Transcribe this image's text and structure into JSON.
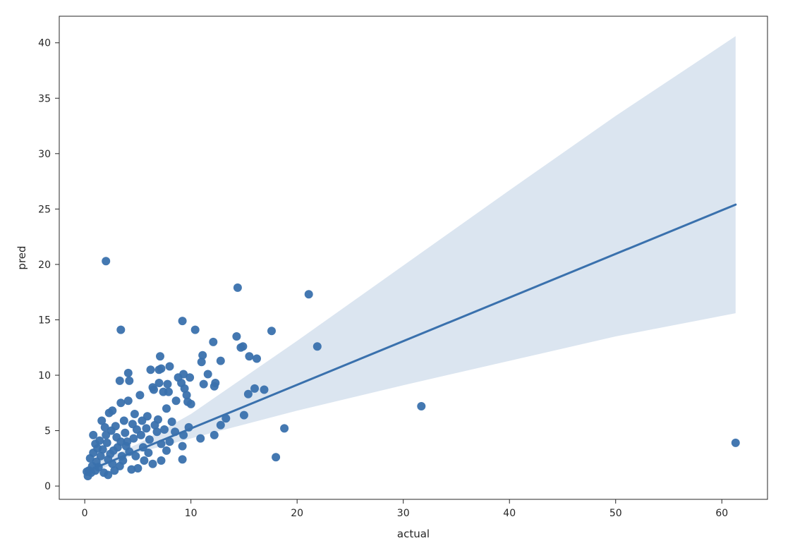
{
  "chart_data": {
    "type": "scatter",
    "title": "",
    "xlabel": "actual",
    "ylabel": "pred",
    "xlim": [
      -2.4,
      64.3
    ],
    "ylim": [
      -1.2,
      42.4
    ],
    "xticks": [
      0,
      10,
      20,
      30,
      40,
      50,
      60
    ],
    "yticks": [
      0,
      5,
      10,
      15,
      20,
      25,
      30,
      35,
      40
    ],
    "grid": false,
    "legend": "none",
    "colors": {
      "points": "#3a71ad",
      "line": "#3a71ad",
      "band": "#dbe5f0"
    },
    "regression_line": {
      "x": [
        0.1,
        61.3
      ],
      "y": [
        1.3,
        25.4
      ]
    },
    "confidence_band": {
      "x": [
        0.1,
        5,
        10,
        20,
        30,
        40,
        50,
        61.3
      ],
      "lower": [
        0.9,
        3.0,
        4.3,
        6.8,
        9.1,
        11.3,
        13.5,
        15.6
      ],
      "upper": [
        1.7,
        3.8,
        6.5,
        13.1,
        19.9,
        26.7,
        33.4,
        40.6
      ]
    },
    "points": [
      [
        2.0,
        20.3
      ],
      [
        3.4,
        14.1
      ],
      [
        14.4,
        17.9
      ],
      [
        21.1,
        17.3
      ],
      [
        9.2,
        14.9
      ],
      [
        10.4,
        14.1
      ],
      [
        17.6,
        14.0
      ],
      [
        14.3,
        13.5
      ],
      [
        12.1,
        13.0
      ],
      [
        14.9,
        12.6
      ],
      [
        21.9,
        12.6
      ],
      [
        14.7,
        12.5
      ],
      [
        11.1,
        11.8
      ],
      [
        15.5,
        11.7
      ],
      [
        16.2,
        11.5
      ],
      [
        7.1,
        11.7
      ],
      [
        11.0,
        11.2
      ],
      [
        12.8,
        11.3
      ],
      [
        6.2,
        10.5
      ],
      [
        7.0,
        10.5
      ],
      [
        7.2,
        10.6
      ],
      [
        8.0,
        10.8
      ],
      [
        4.1,
        10.2
      ],
      [
        9.3,
        10.1
      ],
      [
        11.6,
        10.1
      ],
      [
        9.9,
        9.8
      ],
      [
        8.8,
        9.8
      ],
      [
        12.3,
        9.3
      ],
      [
        11.2,
        9.2
      ],
      [
        3.3,
        9.5
      ],
      [
        4.2,
        9.5
      ],
      [
        7.0,
        9.3
      ],
      [
        7.8,
        9.2
      ],
      [
        9.1,
        9.3
      ],
      [
        6.4,
        8.9
      ],
      [
        9.4,
        8.8
      ],
      [
        12.2,
        9.0
      ],
      [
        6.5,
        8.7
      ],
      [
        16.0,
        8.8
      ],
      [
        16.9,
        8.7
      ],
      [
        15.4,
        8.3
      ],
      [
        7.4,
        8.5
      ],
      [
        7.9,
        8.5
      ],
      [
        9.6,
        8.2
      ],
      [
        5.2,
        8.2
      ],
      [
        4.1,
        7.7
      ],
      [
        9.7,
        7.6
      ],
      [
        8.6,
        7.7
      ],
      [
        3.4,
        7.5
      ],
      [
        31.7,
        7.2
      ],
      [
        2.6,
        6.8
      ],
      [
        10.0,
        7.4
      ],
      [
        7.7,
        7.0
      ],
      [
        13.3,
        6.1
      ],
      [
        15.0,
        6.4
      ],
      [
        12.8,
        5.5
      ],
      [
        18.8,
        5.2
      ],
      [
        9.8,
        5.3
      ],
      [
        8.2,
        5.8
      ],
      [
        9.3,
        4.6
      ],
      [
        10.9,
        4.3
      ],
      [
        12.2,
        4.6
      ],
      [
        8.0,
        4.0
      ],
      [
        7.2,
        3.8
      ],
      [
        9.2,
        3.6
      ],
      [
        7.7,
        3.2
      ],
      [
        6.4,
        2.0
      ],
      [
        7.2,
        2.3
      ],
      [
        9.2,
        2.4
      ],
      [
        18.0,
        2.6
      ],
      [
        61.3,
        3.9
      ],
      [
        5.0,
        1.6
      ],
      [
        4.4,
        1.5
      ],
      [
        2.2,
        1.0
      ],
      [
        0.3,
        0.9
      ],
      [
        0.6,
        1.2
      ],
      [
        1.0,
        1.4
      ],
      [
        0.5,
        2.5
      ],
      [
        1.2,
        3.4
      ],
      [
        0.8,
        4.6
      ],
      [
        1.6,
        5.9
      ],
      [
        2.3,
        6.6
      ],
      [
        4.7,
        6.5
      ],
      [
        5.9,
        6.3
      ],
      [
        6.9,
        6.0
      ],
      [
        5.4,
        5.9
      ],
      [
        4.9,
        5.1
      ],
      [
        3.8,
        4.8
      ],
      [
        3.0,
        4.4
      ],
      [
        2.1,
        3.9
      ],
      [
        1.7,
        3.3
      ],
      [
        1.5,
        2.7
      ],
      [
        1.1,
        2.2
      ],
      [
        2.6,
        2.0
      ],
      [
        3.5,
        2.7
      ],
      [
        4.2,
        3.1
      ],
      [
        5.5,
        3.5
      ],
      [
        6.1,
        4.2
      ],
      [
        6.8,
        4.9
      ],
      [
        3.3,
        1.8
      ],
      [
        2.8,
        1.4
      ],
      [
        1.8,
        1.2
      ],
      [
        0.7,
        1.8
      ],
      [
        0.4,
        1.4
      ],
      [
        2.0,
        4.6
      ],
      [
        2.9,
        5.4
      ],
      [
        3.7,
        5.9
      ],
      [
        4.5,
        5.6
      ],
      [
        5.3,
        4.6
      ],
      [
        4.0,
        4.0
      ],
      [
        3.1,
        3.5
      ],
      [
        2.4,
        2.9
      ],
      [
        1.4,
        4.1
      ],
      [
        1.0,
        3.8
      ],
      [
        0.8,
        3.0
      ],
      [
        5.8,
        5.2
      ],
      [
        6.6,
        5.5
      ],
      [
        7.5,
        5.1
      ],
      [
        8.5,
        4.9
      ],
      [
        3.6,
        2.3
      ],
      [
        2.5,
        5.0
      ],
      [
        1.9,
        5.3
      ],
      [
        4.8,
        2.7
      ],
      [
        5.6,
        2.3
      ],
      [
        6.0,
        3.0
      ],
      [
        2.2,
        2.4
      ],
      [
        3.9,
        3.6
      ],
      [
        4.6,
        4.3
      ],
      [
        1.3,
        1.7
      ],
      [
        0.2,
        1.3
      ],
      [
        2.7,
        3.2
      ],
      [
        3.4,
        4.0
      ]
    ]
  }
}
